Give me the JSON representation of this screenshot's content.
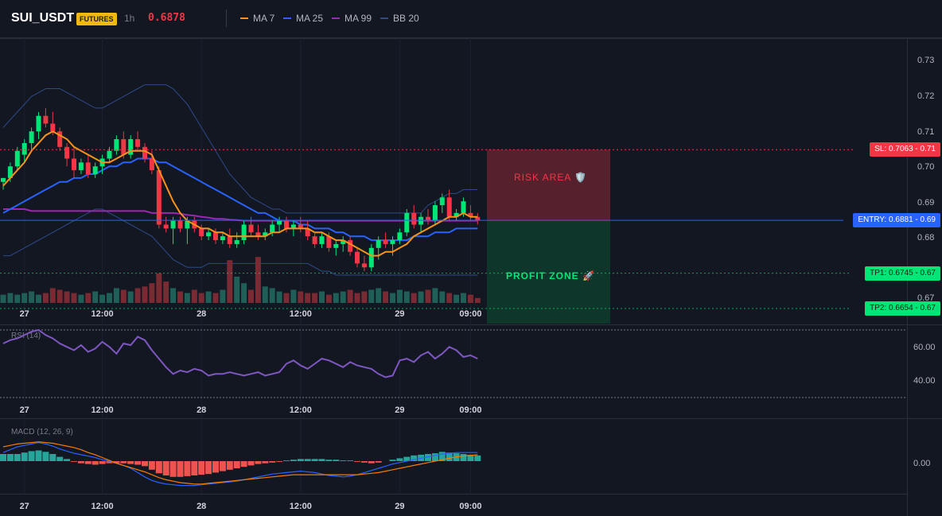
{
  "header": {
    "symbol": "SUI_USDT",
    "badge": "FUTURES",
    "timeframe": "1h",
    "price": "0.6878",
    "legend": [
      {
        "label": "MA 7",
        "color": "#f7931a"
      },
      {
        "label": "MA 25",
        "color": "#2962ff"
      },
      {
        "label": "MA 99",
        "color": "#9c27b0"
      },
      {
        "label": "BB 20",
        "color": "#2e4a8a"
      }
    ]
  },
  "colors": {
    "up": "#26a69a",
    "up_bright": "#00e676",
    "down": "#f23645",
    "bg": "#131722",
    "grid": "#1e222d",
    "ma7": "#f7931a",
    "ma25": "#2962ff",
    "ma99": "#9c27b0",
    "bb": "#2e4a8a",
    "rsi": "#7e57c2",
    "macd": "#2962ff",
    "signal": "#f57c00"
  },
  "time_axis": {
    "labels": [
      "27",
      "12:00",
      "28",
      "12:00",
      "29",
      "09:00"
    ]
  },
  "price_axis": {
    "labels": [
      "0.73",
      "0.72",
      "0.71",
      "0.70",
      "0.69",
      "0.68",
      "0.67",
      "0.67"
    ]
  },
  "levels": {
    "sl": {
      "label": "SL: 0.7063",
      "axis": "0.71",
      "value": 0.7063,
      "color": "#f23645"
    },
    "entry": {
      "label": "ENTRY: 0.6881",
      "axis": "0.69",
      "value": 0.6881,
      "color": "#2962ff"
    },
    "tp1": {
      "label": "TP1: 0.6745",
      "axis": "0.67",
      "value": 0.6745,
      "color": "#00e676"
    },
    "tp2": {
      "label": "TP2: 0.6654",
      "axis": "0.67",
      "value": 0.6654,
      "color": "#00e676"
    }
  },
  "zones": {
    "risk": "RISK AREA 🛡️",
    "profit": "PROFIT ZONE 🚀"
  },
  "rsi": {
    "title": "RSI (14)",
    "axis_labels": [
      "60.00",
      "40.00"
    ],
    "upper": 70,
    "lower": 30
  },
  "macd": {
    "title": "MACD (12, 26, 9)",
    "axis_labels": [
      "0.00"
    ]
  },
  "chart_data": {
    "type": "candlestick",
    "title": "",
    "ylim": [
      0.665,
      0.735
    ],
    "candles": [
      [
        0.698,
        0.699,
        0.696,
        0.699
      ],
      [
        0.699,
        0.703,
        0.698,
        0.702
      ],
      [
        0.702,
        0.707,
        0.701,
        0.706
      ],
      [
        0.705,
        0.709,
        0.703,
        0.708
      ],
      [
        0.708,
        0.712,
        0.706,
        0.711
      ],
      [
        0.711,
        0.716,
        0.709,
        0.715
      ],
      [
        0.715,
        0.717,
        0.712,
        0.713
      ],
      [
        0.713,
        0.716,
        0.71,
        0.711
      ],
      [
        0.711,
        0.712,
        0.706,
        0.707
      ],
      [
        0.707,
        0.708,
        0.702,
        0.704
      ],
      [
        0.704,
        0.707,
        0.699,
        0.701
      ],
      [
        0.701,
        0.704,
        0.7,
        0.703
      ],
      [
        0.703,
        0.705,
        0.699,
        0.7
      ],
      [
        0.7,
        0.703,
        0.699,
        0.702
      ],
      [
        0.702,
        0.705,
        0.7,
        0.704
      ],
      [
        0.704,
        0.707,
        0.703,
        0.706
      ],
      [
        0.706,
        0.71,
        0.705,
        0.709
      ],
      [
        0.709,
        0.711,
        0.704,
        0.705
      ],
      [
        0.705,
        0.71,
        0.704,
        0.709
      ],
      [
        0.709,
        0.711,
        0.706,
        0.707
      ],
      [
        0.707,
        0.708,
        0.703,
        0.704
      ],
      [
        0.704,
        0.706,
        0.7,
        0.701
      ],
      [
        0.701,
        0.702,
        0.686,
        0.687
      ],
      [
        0.687,
        0.689,
        0.685,
        0.686
      ],
      [
        0.686,
        0.689,
        0.682,
        0.688
      ],
      [
        0.688,
        0.689,
        0.685,
        0.686
      ],
      [
        0.686,
        0.689,
        0.682,
        0.688
      ],
      [
        0.688,
        0.689,
        0.685,
        0.686
      ],
      [
        0.686,
        0.687,
        0.683,
        0.684
      ],
      [
        0.684,
        0.686,
        0.683,
        0.685
      ],
      [
        0.685,
        0.686,
        0.682,
        0.683
      ],
      [
        0.683,
        0.685,
        0.682,
        0.684
      ],
      [
        0.684,
        0.686,
        0.681,
        0.682
      ],
      [
        0.682,
        0.685,
        0.681,
        0.683
      ],
      [
        0.683,
        0.688,
        0.682,
        0.687
      ],
      [
        0.687,
        0.689,
        0.684,
        0.685
      ],
      [
        0.685,
        0.687,
        0.683,
        0.684
      ],
      [
        0.684,
        0.686,
        0.683,
        0.685
      ],
      [
        0.685,
        0.688,
        0.684,
        0.687
      ],
      [
        0.687,
        0.689,
        0.685,
        0.688
      ],
      [
        0.688,
        0.689,
        0.685,
        0.686
      ],
      [
        0.686,
        0.688,
        0.684,
        0.687
      ],
      [
        0.687,
        0.689,
        0.685,
        0.686
      ],
      [
        0.686,
        0.688,
        0.683,
        0.684
      ],
      [
        0.684,
        0.685,
        0.681,
        0.682
      ],
      [
        0.682,
        0.685,
        0.681,
        0.684
      ],
      [
        0.684,
        0.685,
        0.68,
        0.681
      ],
      [
        0.681,
        0.683,
        0.679,
        0.682
      ],
      [
        0.682,
        0.684,
        0.68,
        0.683
      ],
      [
        0.683,
        0.684,
        0.679,
        0.68
      ],
      [
        0.68,
        0.681,
        0.676,
        0.677
      ],
      [
        0.677,
        0.679,
        0.675,
        0.676
      ],
      [
        0.676,
        0.682,
        0.675,
        0.681
      ],
      [
        0.681,
        0.684,
        0.678,
        0.683
      ],
      [
        0.683,
        0.685,
        0.681,
        0.682
      ],
      [
        0.682,
        0.684,
        0.679,
        0.683
      ],
      [
        0.683,
        0.686,
        0.682,
        0.685
      ],
      [
        0.685,
        0.691,
        0.684,
        0.69
      ],
      [
        0.69,
        0.692,
        0.686,
        0.687
      ],
      [
        0.687,
        0.69,
        0.685,
        0.689
      ],
      [
        0.689,
        0.691,
        0.687,
        0.688
      ],
      [
        0.688,
        0.693,
        0.687,
        0.692
      ],
      [
        0.692,
        0.695,
        0.69,
        0.694
      ],
      [
        0.694,
        0.696,
        0.688,
        0.689
      ],
      [
        0.689,
        0.691,
        0.688,
        0.69
      ],
      [
        0.69,
        0.694,
        0.689,
        0.693
      ],
      [
        0.69,
        0.692,
        0.688,
        0.689
      ],
      [
        0.689,
        0.69,
        0.687,
        0.688
      ]
    ],
    "volume": [
      5,
      6,
      5,
      6,
      7,
      5,
      6,
      9,
      8,
      7,
      6,
      5,
      6,
      7,
      5,
      6,
      9,
      8,
      7,
      9,
      10,
      12,
      18,
      13,
      9,
      7,
      6,
      8,
      6,
      7,
      6,
      8,
      26,
      16,
      12,
      8,
      28,
      10,
      9,
      7,
      6,
      8,
      7,
      6,
      6,
      7,
      5,
      6,
      7,
      8,
      6,
      7,
      8,
      9,
      7,
      6,
      8,
      7,
      6,
      7,
      8,
      9,
      7,
      6,
      5,
      6,
      5,
      3
    ],
    "ma7": [
      0.697,
      0.699,
      0.701,
      0.703,
      0.706,
      0.708,
      0.71,
      0.711,
      0.71,
      0.709,
      0.707,
      0.706,
      0.705,
      0.704,
      0.703,
      0.703,
      0.704,
      0.705,
      0.706,
      0.706,
      0.706,
      0.705,
      0.701,
      0.697,
      0.693,
      0.69,
      0.688,
      0.687,
      0.686,
      0.686,
      0.685,
      0.685,
      0.684,
      0.684,
      0.684,
      0.684,
      0.684,
      0.684,
      0.685,
      0.685,
      0.686,
      0.686,
      0.686,
      0.686,
      0.685,
      0.685,
      0.684,
      0.683,
      0.683,
      0.682,
      0.681,
      0.68,
      0.679,
      0.679,
      0.68,
      0.68,
      0.681,
      0.682,
      0.684,
      0.685,
      0.686,
      0.687,
      0.688,
      0.689,
      0.689,
      0.69,
      0.689,
      0.689
    ],
    "ma25": [
      0.69,
      0.691,
      0.692,
      0.693,
      0.694,
      0.695,
      0.696,
      0.697,
      0.698,
      0.698,
      0.699,
      0.699,
      0.7,
      0.7,
      0.701,
      0.702,
      0.702,
      0.703,
      0.703,
      0.704,
      0.704,
      0.704,
      0.703,
      0.703,
      0.702,
      0.701,
      0.7,
      0.699,
      0.698,
      0.697,
      0.696,
      0.695,
      0.694,
      0.693,
      0.692,
      0.691,
      0.69,
      0.69,
      0.689,
      0.688,
      0.688,
      0.688,
      0.687,
      0.687,
      0.686,
      0.686,
      0.686,
      0.685,
      0.685,
      0.684,
      0.684,
      0.684,
      0.683,
      0.683,
      0.683,
      0.683,
      0.683,
      0.683,
      0.684,
      0.684,
      0.684,
      0.685,
      0.685,
      0.685,
      0.686,
      0.686,
      0.686,
      0.686
    ],
    "ma99": [
      0.691,
      0.691,
      0.691,
      0.691,
      0.6905,
      0.6905,
      0.6905,
      0.6905,
      0.6905,
      0.6905,
      0.6905,
      0.6905,
      0.6905,
      0.6905,
      0.6905,
      0.6905,
      0.6905,
      0.6905,
      0.6905,
      0.6905,
      0.6905,
      0.69,
      0.69,
      0.69,
      0.69,
      0.6898,
      0.6895,
      0.6893,
      0.689,
      0.6888,
      0.6885,
      0.6885,
      0.6883,
      0.6882,
      0.688,
      0.688,
      0.688,
      0.688,
      0.688,
      0.688,
      0.688,
      0.688,
      0.688,
      0.688,
      0.688,
      0.688,
      0.688,
      0.688,
      0.688,
      0.688,
      0.688,
      0.688,
      0.688,
      0.688,
      0.688,
      0.688,
      0.688,
      0.688,
      0.688,
      0.688,
      0.688,
      0.688,
      0.688,
      0.688,
      0.688,
      0.688,
      0.688,
      0.688
    ],
    "bb_upper": [
      0.712,
      0.714,
      0.716,
      0.718,
      0.72,
      0.721,
      0.722,
      0.722,
      0.722,
      0.721,
      0.72,
      0.719,
      0.718,
      0.717,
      0.717,
      0.718,
      0.719,
      0.72,
      0.721,
      0.722,
      0.723,
      0.723,
      0.723,
      0.723,
      0.722,
      0.72,
      0.718,
      0.715,
      0.712,
      0.709,
      0.706,
      0.703,
      0.7,
      0.698,
      0.696,
      0.694,
      0.693,
      0.692,
      0.691,
      0.691,
      0.69,
      0.69,
      0.69,
      0.69,
      0.69,
      0.69,
      0.69,
      0.69,
      0.69,
      0.69,
      0.69,
      0.69,
      0.69,
      0.69,
      0.69,
      0.69,
      0.69,
      0.69,
      0.69,
      0.69,
      0.692,
      0.693,
      0.694,
      0.695,
      0.695,
      0.696,
      0.696,
      0.696
    ],
    "bb_lower": [
      0.679,
      0.679,
      0.68,
      0.681,
      0.682,
      0.683,
      0.684,
      0.685,
      0.686,
      0.687,
      0.688,
      0.689,
      0.69,
      0.691,
      0.691,
      0.69,
      0.689,
      0.688,
      0.687,
      0.686,
      0.685,
      0.684,
      0.682,
      0.68,
      0.678,
      0.677,
      0.676,
      0.676,
      0.676,
      0.677,
      0.677,
      0.677,
      0.677,
      0.677,
      0.677,
      0.677,
      0.677,
      0.677,
      0.677,
      0.677,
      0.677,
      0.677,
      0.677,
      0.677,
      0.676,
      0.675,
      0.675,
      0.674,
      0.674,
      0.674,
      0.674,
      0.674,
      0.674,
      0.674,
      0.674,
      0.674,
      0.674,
      0.674,
      0.674,
      0.674,
      0.674,
      0.674,
      0.674,
      0.674,
      0.674,
      0.674,
      0.674,
      0.674
    ],
    "rsi": [
      62,
      64,
      65,
      67,
      69,
      70,
      67,
      65,
      62,
      60,
      58,
      61,
      57,
      59,
      63,
      60,
      56,
      62,
      61,
      66,
      64,
      58,
      53,
      48,
      44,
      46,
      45,
      47,
      46,
      43,
      44,
      44,
      45,
      44,
      43,
      44,
      45,
      43,
      44,
      45,
      50,
      52,
      49,
      47,
      50,
      53,
      52,
      50,
      48,
      51,
      49,
      48,
      47,
      44,
      42,
      43,
      52,
      53,
      51,
      55,
      57,
      53,
      56,
      60,
      58,
      54,
      55,
      53
    ],
    "macd_hist": [
      1,
      1,
      1,
      1.2,
      1.4,
      1.5,
      1.3,
      1,
      0.6,
      0.3,
      -0.1,
      -0.3,
      -0.4,
      -0.5,
      -0.4,
      -0.3,
      -0.3,
      -0.3,
      -0.4,
      -0.5,
      -0.7,
      -1.2,
      -1.7,
      -2.0,
      -2.2,
      -2.2,
      -2.1,
      -2.0,
      -1.9,
      -1.8,
      -1.6,
      -1.4,
      -1.2,
      -1.0,
      -0.8,
      -0.6,
      -0.4,
      -0.3,
      -0.2,
      -0.1,
      0.1,
      0.2,
      0.3,
      0.3,
      0.3,
      0.3,
      0.2,
      0.2,
      0.1,
      0.1,
      -0.1,
      -0.2,
      -0.3,
      -0.2,
      0,
      0.2,
      0.4,
      0.6,
      0.8,
      0.9,
      1.0,
      1.1,
      1.3,
      1.2,
      1.1,
      1.0,
      0.9,
      0.8
    ],
    "macd": [
      1.2,
      1.6,
      2.0,
      2.2,
      2.4,
      2.6,
      2.4,
      2.1,
      1.7,
      1.4,
      1.1,
      0.9,
      0.7,
      0.5,
      0.2,
      0,
      -0.3,
      -0.6,
      -1.0,
      -1.6,
      -2.2,
      -2.7,
      -3.0,
      -3.2,
      -3.3,
      -3.4,
      -3.4,
      -3.4,
      -3.3,
      -3.2,
      -3.1,
      -3.0,
      -2.9,
      -2.8,
      -2.6,
      -2.4,
      -2.2,
      -2.0,
      -1.8,
      -1.7,
      -1.6,
      -1.5,
      -1.4,
      -1.5,
      -1.6,
      -1.8,
      -2.0,
      -2.1,
      -2.2,
      -2.1,
      -1.9,
      -1.6,
      -1.3,
      -1.0,
      -0.7,
      -0.4,
      -0.2,
      0,
      0.2,
      0.4,
      0.6,
      0.8,
      1.0,
      1.1,
      1.2,
      1.2,
      1.2,
      1.2
    ],
    "macd_signal": [
      2.0,
      2.2,
      2.4,
      2.5,
      2.6,
      2.7,
      2.6,
      2.5,
      2.3,
      2.1,
      1.9,
      1.6,
      1.2,
      0.9,
      0.5,
      0.1,
      -0.3,
      -0.6,
      -0.9,
      -1.2,
      -1.5,
      -1.9,
      -2.3,
      -2.6,
      -2.8,
      -3.0,
      -3.1,
      -3.2,
      -3.2,
      -3.1,
      -3.0,
      -2.9,
      -2.8,
      -2.7,
      -2.6,
      -2.5,
      -2.4,
      -2.3,
      -2.2,
      -2.1,
      -2.0,
      -1.9,
      -1.9,
      -1.9,
      -1.9,
      -1.9,
      -1.9,
      -1.9,
      -1.9,
      -1.9,
      -1.9,
      -1.8,
      -1.7,
      -1.6,
      -1.4,
      -1.2,
      -1.0,
      -0.8,
      -0.6,
      -0.4,
      -0.2,
      0,
      0.2,
      0.4,
      0.6,
      0.7,
      0.8,
      0.9
    ]
  }
}
